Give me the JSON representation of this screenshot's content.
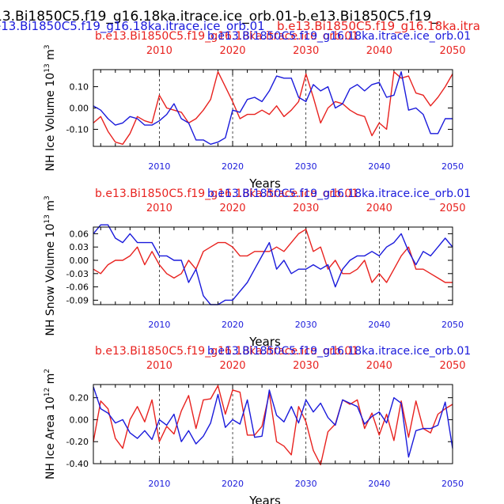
{
  "header": {
    "line1": "13.Bi1850C5.f19_g16.18ka.itrace.ice_orb.01-b.e13.Bi1850C5.f19_",
    "line2_blue": "e13.Bi1850C5.f19_g16.18ka.itrace.ice_orb.01",
    "line2_red": "b.e13.Bi1850C5.f19_g16.18ka.itra"
  },
  "colors": {
    "red": "#e8221f",
    "blue": "#1a1adb",
    "black": "#000000"
  },
  "chart_data": [
    {
      "type": "line",
      "title_red": "b.e13.Bi1850C5.f19_g16.18ka.itrace.ice_orb.01",
      "title_blue": "b.e13.Bi1850C5.f19_g16.18ka.itrace.ice_orb.01",
      "ylabel": "NH Ice Volume 10^13 m^3",
      "ylabel_main": "NH Ice Volume 10",
      "ylabel_exp": "13",
      "ylabel_unit": " m",
      "ylabel_unit_exp": "3",
      "xlabel": "Years",
      "xlim": [
        2001,
        2050
      ],
      "ylim": [
        -0.18,
        0.18
      ],
      "yticks": [
        "0.10",
        "0.00",
        "-0.10"
      ],
      "ytick_values": [
        0.1,
        0.0,
        -0.1
      ],
      "xticks_top": [
        "2010",
        "2020",
        "2030",
        "2040",
        "2050"
      ],
      "xticks_bottom": [
        "2010",
        "2020",
        "2030",
        "2040",
        "2050"
      ],
      "xtick_values": [
        2010,
        2020,
        2030,
        2040,
        2050
      ],
      "x": [
        2001,
        2002,
        2003,
        2004,
        2005,
        2006,
        2007,
        2008,
        2009,
        2010,
        2011,
        2012,
        2013,
        2014,
        2015,
        2016,
        2017,
        2018,
        2019,
        2020,
        2021,
        2022,
        2023,
        2024,
        2025,
        2026,
        2027,
        2028,
        2029,
        2030,
        2031,
        2032,
        2033,
        2034,
        2035,
        2036,
        2037,
        2038,
        2039,
        2040,
        2041,
        2042,
        2043,
        2044,
        2045,
        2046,
        2047,
        2048,
        2049,
        2050
      ],
      "series": [
        {
          "name": "red",
          "color": "#e8221f",
          "values": [
            -0.07,
            -0.04,
            -0.11,
            -0.16,
            -0.17,
            -0.12,
            -0.04,
            -0.06,
            -0.07,
            0.06,
            0.0,
            -0.01,
            -0.02,
            -0.07,
            -0.05,
            -0.01,
            0.04,
            0.17,
            0.1,
            0.03,
            -0.05,
            -0.03,
            -0.03,
            -0.01,
            -0.03,
            0.01,
            -0.04,
            -0.01,
            0.03,
            0.16,
            0.05,
            -0.07,
            0.0,
            0.03,
            0.02,
            -0.01,
            -0.03,
            -0.04,
            -0.13,
            -0.07,
            -0.1,
            0.17,
            0.14,
            0.15,
            0.07,
            0.06,
            0.01,
            0.05,
            0.1,
            0.16
          ]
        },
        {
          "name": "blue",
          "color": "#1a1adb",
          "values": [
            0.01,
            -0.01,
            -0.05,
            -0.08,
            -0.07,
            -0.04,
            -0.05,
            -0.08,
            -0.08,
            -0.06,
            -0.03,
            0.02,
            -0.05,
            -0.07,
            -0.15,
            -0.15,
            -0.17,
            -0.16,
            -0.14,
            -0.01,
            -0.02,
            0.04,
            0.05,
            0.03,
            0.08,
            0.15,
            0.14,
            0.14,
            0.05,
            0.03,
            0.11,
            0.08,
            0.1,
            0.0,
            0.02,
            0.09,
            0.11,
            0.08,
            0.11,
            0.12,
            0.05,
            0.06,
            0.17,
            -0.01,
            0.0,
            -0.03,
            -0.12,
            -0.12,
            -0.05,
            -0.05
          ]
        }
      ]
    },
    {
      "type": "line",
      "title_red": "b.e13.Bi1850C5.f19_g16.18ka.itrace.ice_orb.01",
      "title_blue": "b.e13.Bi1850C5.f19_g16.18ka.itrace.ice_orb.01",
      "ylabel": "NH Snow Volume 10^13 m^3",
      "ylabel_main": "NH Snow Volume 10",
      "ylabel_exp": "13",
      "ylabel_unit": " m",
      "ylabel_unit_exp": "3",
      "xlabel": "Years",
      "xlim": [
        2001,
        2050
      ],
      "ylim": [
        -0.1,
        0.075
      ],
      "yticks": [
        "0.06",
        "0.03",
        "0.00",
        "-0.03",
        "-0.06",
        "-0.09"
      ],
      "ytick_values": [
        0.06,
        0.03,
        0.0,
        -0.03,
        -0.06,
        -0.09
      ],
      "xticks_top": [
        "2010",
        "2020",
        "2030",
        "2040",
        "2050"
      ],
      "xticks_bottom": [
        "2010",
        "2020",
        "2030",
        "2040",
        "2050"
      ],
      "xtick_values": [
        2010,
        2020,
        2030,
        2040,
        2050
      ],
      "x": [
        2001,
        2002,
        2003,
        2004,
        2005,
        2006,
        2007,
        2008,
        2009,
        2010,
        2011,
        2012,
        2013,
        2014,
        2015,
        2016,
        2017,
        2018,
        2019,
        2020,
        2021,
        2022,
        2023,
        2024,
        2025,
        2026,
        2027,
        2028,
        2029,
        2030,
        2031,
        2032,
        2033,
        2034,
        2035,
        2036,
        2037,
        2038,
        2039,
        2040,
        2041,
        2042,
        2043,
        2044,
        2045,
        2046,
        2047,
        2048,
        2049,
        2050
      ],
      "series": [
        {
          "name": "red",
          "color": "#e8221f",
          "values": [
            -0.02,
            -0.03,
            -0.01,
            0.0,
            0.0,
            0.01,
            0.03,
            -0.01,
            0.02,
            -0.01,
            -0.03,
            -0.04,
            -0.03,
            0.0,
            -0.02,
            0.02,
            0.03,
            0.04,
            0.04,
            0.03,
            0.01,
            0.01,
            0.02,
            0.02,
            0.02,
            0.03,
            0.02,
            0.04,
            0.06,
            0.07,
            0.02,
            0.03,
            -0.02,
            0.0,
            -0.03,
            -0.03,
            -0.02,
            0.0,
            -0.05,
            -0.03,
            -0.05,
            -0.02,
            0.01,
            0.03,
            -0.02,
            -0.02,
            -0.03,
            -0.04,
            -0.05,
            -0.05
          ]
        },
        {
          "name": "blue",
          "color": "#1a1adb",
          "values": [
            0.06,
            0.08,
            0.08,
            0.05,
            0.04,
            0.06,
            0.04,
            0.04,
            0.04,
            0.01,
            0.01,
            0.0,
            0.0,
            -0.05,
            -0.02,
            -0.08,
            -0.1,
            -0.1,
            -0.09,
            -0.09,
            -0.07,
            -0.05,
            -0.02,
            0.01,
            0.04,
            -0.02,
            0.0,
            -0.03,
            -0.02,
            -0.02,
            -0.01,
            -0.02,
            -0.01,
            -0.06,
            -0.02,
            0.0,
            0.01,
            0.01,
            0.02,
            0.01,
            0.03,
            0.04,
            0.06,
            0.02,
            -0.01,
            0.02,
            0.01,
            0.03,
            0.05,
            0.03
          ]
        }
      ]
    },
    {
      "type": "line",
      "title_red": "b.e13.Bi1850C5.f19_g16.18ka.itrace.ice_orb.01",
      "title_blue": "b.e13.Bi1850C5.f19_g16.18ka.itrace.ice_orb.01",
      "ylabel": "NH Ice Area 10^12 m^2",
      "ylabel_main": "NH Ice Area 10",
      "ylabel_exp": "12",
      "ylabel_unit": " m",
      "ylabel_unit_exp": "2",
      "xlabel": "Years",
      "xlim": [
        2001,
        2050
      ],
      "ylim": [
        -0.4,
        0.32
      ],
      "yticks": [
        "0.20",
        "0.00",
        "-0.20",
        "-0.40"
      ],
      "ytick_values": [
        0.2,
        0.0,
        -0.2,
        -0.4
      ],
      "xticks_top": [
        "2010",
        "2020",
        "2030",
        "2040",
        "2050"
      ],
      "xticks_bottom": [
        "2010",
        "2020",
        "2030",
        "2040",
        "2050"
      ],
      "xtick_values": [
        2010,
        2020,
        2030,
        2040,
        2050
      ],
      "x": [
        2001,
        2002,
        2003,
        2004,
        2005,
        2006,
        2007,
        2008,
        2009,
        2010,
        2011,
        2012,
        2013,
        2014,
        2015,
        2016,
        2017,
        2018,
        2019,
        2020,
        2021,
        2022,
        2023,
        2024,
        2025,
        2026,
        2027,
        2028,
        2029,
        2030,
        2031,
        2032,
        2033,
        2034,
        2035,
        2036,
        2037,
        2038,
        2039,
        2040,
        2041,
        2042,
        2043,
        2044,
        2045,
        2046,
        2047,
        2048,
        2049,
        2050
      ],
      "series": [
        {
          "name": "red",
          "color": "#e8221f",
          "values": [
            -0.2,
            0.17,
            0.1,
            -0.17,
            -0.26,
            0.0,
            0.12,
            -0.02,
            0.18,
            -0.2,
            -0.06,
            -0.13,
            0.08,
            0.22,
            -0.08,
            0.18,
            0.19,
            0.31,
            0.05,
            0.27,
            0.25,
            -0.14,
            -0.14,
            -0.06,
            0.24,
            -0.2,
            -0.24,
            -0.32,
            0.12,
            -0.02,
            -0.28,
            -0.41,
            -0.11,
            -0.04,
            0.18,
            0.14,
            0.18,
            -0.08,
            0.06,
            -0.14,
            0.05,
            -0.19,
            0.17,
            -0.16,
            0.17,
            -0.08,
            -0.12,
            0.05,
            0.1,
            0.14
          ]
        },
        {
          "name": "blue",
          "color": "#1a1adb",
          "values": [
            0.3,
            0.1,
            0.06,
            -0.03,
            0.0,
            -0.12,
            -0.17,
            -0.1,
            -0.18,
            0.0,
            -0.05,
            0.05,
            -0.2,
            -0.1,
            -0.22,
            -0.15,
            -0.03,
            0.23,
            -0.07,
            0.0,
            -0.04,
            0.18,
            -0.16,
            -0.15,
            0.27,
            0.04,
            -0.02,
            0.12,
            -0.03,
            0.18,
            0.07,
            0.15,
            0.02,
            -0.05,
            0.18,
            0.15,
            0.12,
            -0.04,
            0.03,
            0.07,
            -0.03,
            0.2,
            0.15,
            -0.34,
            -0.1,
            -0.08,
            -0.08,
            -0.05,
            0.16,
            -0.26
          ]
        }
      ]
    }
  ]
}
